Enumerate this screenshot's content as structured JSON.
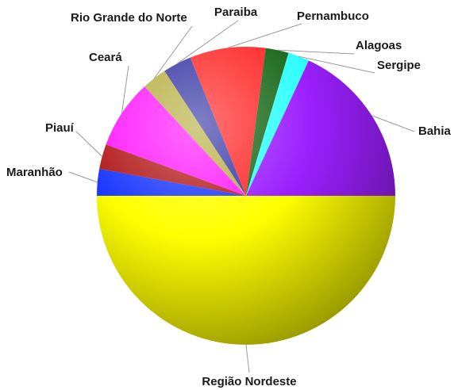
{
  "chart_data": {
    "type": "pie",
    "title": "",
    "start_angle_deg": 0,
    "direction": "clockwise",
    "slices": [
      {
        "label": "Região Nordeste",
        "value": 50.0,
        "color": "#ffff00"
      },
      {
        "label": "Maranhão",
        "value": 2.9,
        "color": "#1f3cff"
      },
      {
        "label": "Piauí",
        "value": 2.7,
        "color": "#b52020"
      },
      {
        "label": "Ceará",
        "value": 7.5,
        "color": "#ff1fff"
      },
      {
        "label": "Rio Grande do Norte",
        "value": 2.7,
        "color": "#b8b046"
      },
      {
        "label": "Paraiba",
        "value": 3.1,
        "color": "#3a3aa8"
      },
      {
        "label": "Pernambuco",
        "value": 8.2,
        "color": "#ff2b2b"
      },
      {
        "label": "Alagoas",
        "value": 2.5,
        "color": "#1e6b1e"
      },
      {
        "label": "Sergipe",
        "value": 2.3,
        "color": "#33ffff"
      },
      {
        "label": "Bahia",
        "value": 18.1,
        "color": "#9c1fff"
      }
    ]
  }
}
